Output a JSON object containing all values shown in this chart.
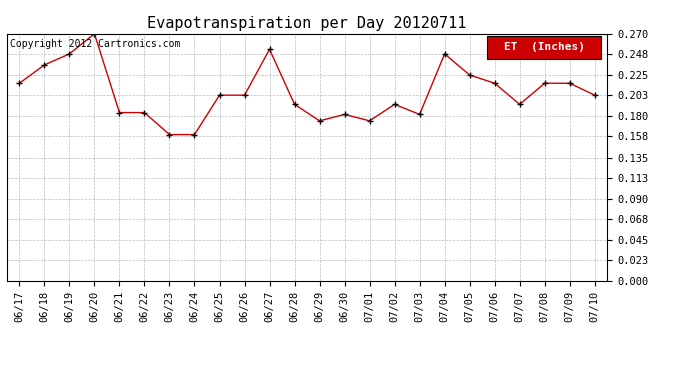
{
  "title": "Evapotranspiration per Day 20120711",
  "copyright": "Copyright 2012 Cartronics.com",
  "legend_label": "ET  (Inches)",
  "x_labels": [
    "06/17",
    "06/18",
    "06/19",
    "06/20",
    "06/21",
    "06/22",
    "06/23",
    "06/24",
    "06/25",
    "06/26",
    "06/27",
    "06/28",
    "06/29",
    "06/30",
    "07/01",
    "07/02",
    "07/03",
    "07/04",
    "07/05",
    "07/06",
    "07/07",
    "07/08",
    "07/09",
    "07/10"
  ],
  "y_values": [
    0.216,
    0.236,
    0.248,
    0.27,
    0.184,
    0.184,
    0.16,
    0.16,
    0.203,
    0.203,
    0.253,
    0.193,
    0.175,
    0.182,
    0.175,
    0.193,
    0.182,
    0.248,
    0.225,
    0.216,
    0.193,
    0.216,
    0.216,
    0.203
  ],
  "y_ticks": [
    0.0,
    0.023,
    0.045,
    0.068,
    0.09,
    0.113,
    0.135,
    0.158,
    0.18,
    0.203,
    0.225,
    0.248,
    0.27
  ],
  "y_min": 0.0,
  "y_max": 0.27,
  "line_color": "#cc0000",
  "marker_color": "#000000",
  "background_color": "#ffffff",
  "grid_color": "#bbbbbb",
  "legend_bg": "#cc0000",
  "legend_text_color": "#ffffff",
  "title_fontsize": 11,
  "copyright_fontsize": 7,
  "tick_fontsize": 7.5,
  "legend_fontsize": 8
}
